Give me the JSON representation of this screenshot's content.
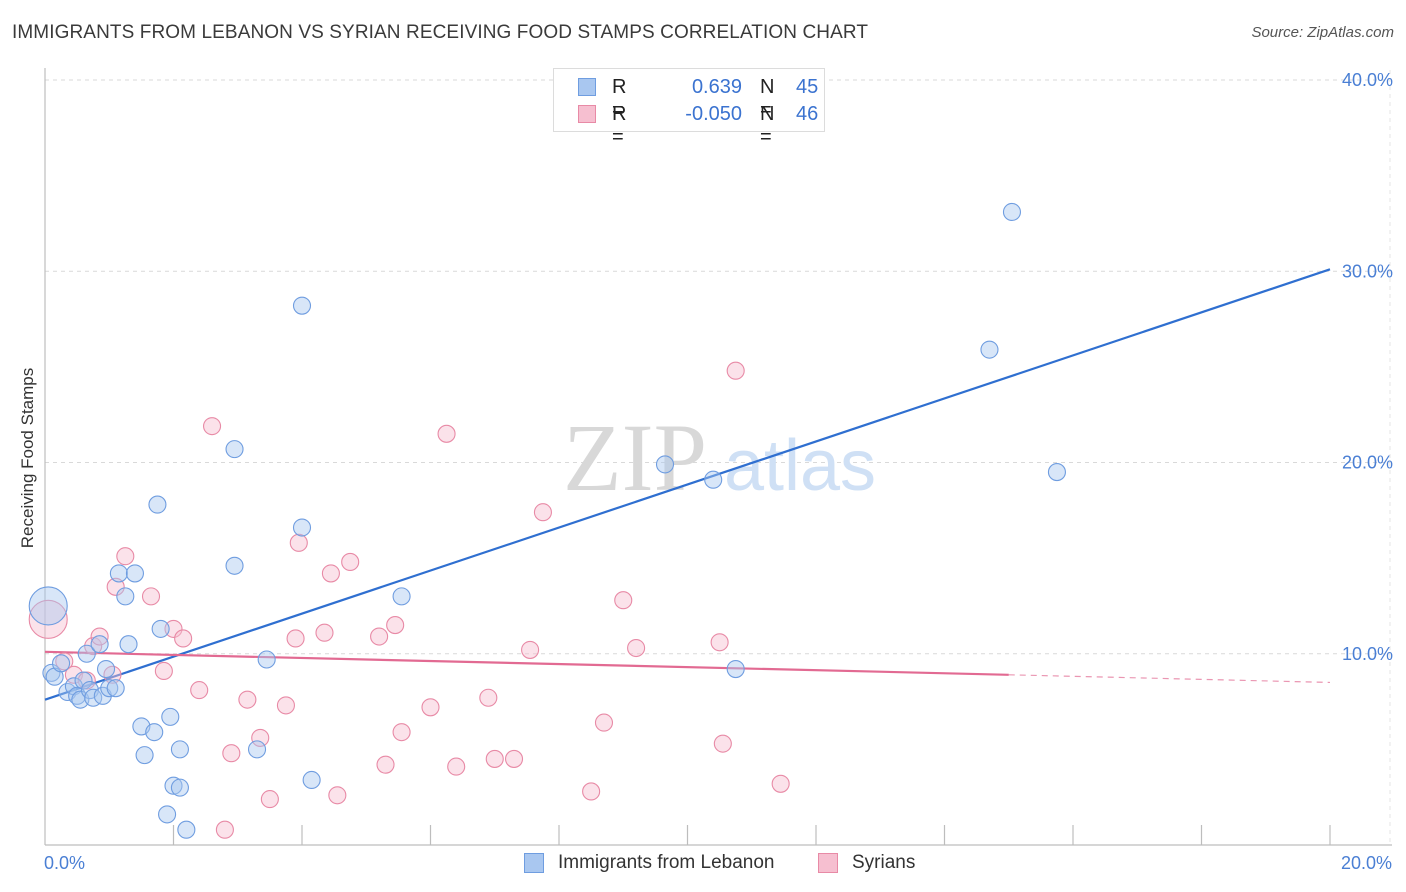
{
  "title": "IMMIGRANTS FROM LEBANON VS SYRIAN RECEIVING FOOD STAMPS CORRELATION CHART",
  "source": "Source: ZipAtlas.com",
  "watermark": {
    "zip": "ZIP",
    "atlas": "atlas"
  },
  "legend": {
    "rows": [
      {
        "r_label": "R =",
        "r_value": "0.639",
        "n_label": "N =",
        "n_value": "45",
        "color": "#a9c7f0",
        "border": "#6f9de0"
      },
      {
        "r_label": "R =",
        "r_value": "-0.050",
        "n_label": "N =",
        "n_value": "46",
        "color": "#f6bfd0",
        "border": "#e88aa6"
      }
    ]
  },
  "bottom_legend": [
    {
      "label": "Immigrants from Lebanon",
      "color": "#a9c7f0",
      "border": "#6f9de0"
    },
    {
      "label": "Syrians",
      "color": "#f6bfd0",
      "border": "#e88aa6"
    }
  ],
  "chart_data": {
    "type": "scatter",
    "ylabel": "Receiving Food Stamps",
    "xlabel": "",
    "xlim": [
      0,
      20
    ],
    "ylim": [
      0,
      40
    ],
    "x_tick_labels": [
      {
        "value": 0,
        "label": "0.0%"
      },
      {
        "value": 20,
        "label": "20.0%"
      }
    ],
    "y_tick_labels": [
      {
        "value": 10,
        "label": "10.0%"
      },
      {
        "value": 20,
        "label": "20.0%"
      },
      {
        "value": 30,
        "label": "30.0%"
      },
      {
        "value": 40,
        "label": "40.0%"
      }
    ],
    "x_minor_ticks": [
      2,
      4,
      6,
      8,
      10,
      12,
      14,
      16,
      18
    ],
    "series": [
      {
        "name": "Immigrants from Lebanon",
        "color": "#6f9de0",
        "fill": "#a9c7f0",
        "trend": {
          "x": [
            0,
            20
          ],
          "y": [
            7.6,
            30.1
          ],
          "color": "#2f6fd0"
        },
        "points": [
          {
            "x": 0.05,
            "y": 12.5,
            "big": true
          },
          {
            "x": 0.1,
            "y": 9.0
          },
          {
            "x": 0.15,
            "y": 8.8
          },
          {
            "x": 0.25,
            "y": 9.5
          },
          {
            "x": 0.35,
            "y": 8.0
          },
          {
            "x": 0.45,
            "y": 8.3
          },
          {
            "x": 0.5,
            "y": 7.8
          },
          {
            "x": 0.55,
            "y": 7.6
          },
          {
            "x": 0.6,
            "y": 8.6
          },
          {
            "x": 0.65,
            "y": 10.0
          },
          {
            "x": 0.7,
            "y": 8.1
          },
          {
            "x": 0.75,
            "y": 7.7
          },
          {
            "x": 0.85,
            "y": 10.5
          },
          {
            "x": 0.9,
            "y": 7.8
          },
          {
            "x": 0.95,
            "y": 9.2
          },
          {
            "x": 1.0,
            "y": 8.2
          },
          {
            "x": 1.1,
            "y": 8.2
          },
          {
            "x": 1.15,
            "y": 14.2
          },
          {
            "x": 1.25,
            "y": 13.0
          },
          {
            "x": 1.3,
            "y": 10.5
          },
          {
            "x": 1.4,
            "y": 14.2
          },
          {
            "x": 1.5,
            "y": 6.2
          },
          {
            "x": 1.55,
            "y": 4.7
          },
          {
            "x": 1.7,
            "y": 5.9
          },
          {
            "x": 1.75,
            "y": 17.8
          },
          {
            "x": 1.8,
            "y": 11.3
          },
          {
            "x": 1.9,
            "y": 1.6
          },
          {
            "x": 1.95,
            "y": 6.7
          },
          {
            "x": 2.0,
            "y": 3.1
          },
          {
            "x": 2.1,
            "y": 3.0
          },
          {
            "x": 2.1,
            "y": 5.0
          },
          {
            "x": 2.2,
            "y": 0.8
          },
          {
            "x": 2.95,
            "y": 20.7
          },
          {
            "x": 2.95,
            "y": 14.6
          },
          {
            "x": 3.3,
            "y": 5.0
          },
          {
            "x": 3.45,
            "y": 9.7
          },
          {
            "x": 4.0,
            "y": 28.2
          },
          {
            "x": 4.0,
            "y": 16.6
          },
          {
            "x": 4.15,
            "y": 3.4
          },
          {
            "x": 5.55,
            "y": 13.0
          },
          {
            "x": 9.65,
            "y": 19.9
          },
          {
            "x": 10.4,
            "y": 19.1
          },
          {
            "x": 10.75,
            "y": 9.2
          },
          {
            "x": 14.7,
            "y": 25.9
          },
          {
            "x": 15.05,
            "y": 33.1
          },
          {
            "x": 15.75,
            "y": 19.5
          }
        ]
      },
      {
        "name": "Syrians",
        "color": "#e88aa6",
        "fill": "#f6bfd0",
        "trend": {
          "x": [
            0,
            15
          ],
          "y": [
            10.1,
            8.9
          ],
          "color": "#e26a92"
        },
        "trend_dashed": {
          "x": [
            15,
            20
          ],
          "y": [
            8.9,
            8.5
          ]
        },
        "points": [
          {
            "x": 0.05,
            "y": 11.8,
            "big": true
          },
          {
            "x": 0.3,
            "y": 9.6
          },
          {
            "x": 0.45,
            "y": 8.9
          },
          {
            "x": 0.65,
            "y": 8.6
          },
          {
            "x": 0.75,
            "y": 10.4
          },
          {
            "x": 0.85,
            "y": 10.9
          },
          {
            "x": 1.05,
            "y": 8.9
          },
          {
            "x": 1.1,
            "y": 13.5
          },
          {
            "x": 1.25,
            "y": 15.1
          },
          {
            "x": 1.65,
            "y": 13.0
          },
          {
            "x": 1.85,
            "y": 9.1
          },
          {
            "x": 2.0,
            "y": 11.3
          },
          {
            "x": 2.15,
            "y": 10.8
          },
          {
            "x": 2.4,
            "y": 8.1
          },
          {
            "x": 2.6,
            "y": 21.9
          },
          {
            "x": 2.8,
            "y": 0.8
          },
          {
            "x": 2.9,
            "y": 4.8
          },
          {
            "x": 3.15,
            "y": 7.6
          },
          {
            "x": 3.35,
            "y": 5.6
          },
          {
            "x": 3.5,
            "y": 2.4
          },
          {
            "x": 3.75,
            "y": 7.3
          },
          {
            "x": 3.9,
            "y": 10.8
          },
          {
            "x": 3.95,
            "y": 15.8
          },
          {
            "x": 4.35,
            "y": 11.1
          },
          {
            "x": 4.45,
            "y": 14.2
          },
          {
            "x": 4.55,
            "y": 2.6
          },
          {
            "x": 4.75,
            "y": 14.8
          },
          {
            "x": 5.2,
            "y": 10.9
          },
          {
            "x": 5.3,
            "y": 4.2
          },
          {
            "x": 5.45,
            "y": 11.5
          },
          {
            "x": 5.55,
            "y": 5.9
          },
          {
            "x": 6.0,
            "y": 7.2
          },
          {
            "x": 6.25,
            "y": 21.5
          },
          {
            "x": 6.4,
            "y": 4.1
          },
          {
            "x": 6.9,
            "y": 7.7
          },
          {
            "x": 7.0,
            "y": 4.5
          },
          {
            "x": 7.3,
            "y": 4.5
          },
          {
            "x": 7.55,
            "y": 10.2
          },
          {
            "x": 7.75,
            "y": 17.4
          },
          {
            "x": 8.5,
            "y": 2.8
          },
          {
            "x": 8.7,
            "y": 6.4
          },
          {
            "x": 9.0,
            "y": 12.8
          },
          {
            "x": 9.2,
            "y": 10.3
          },
          {
            "x": 10.5,
            "y": 10.6
          },
          {
            "x": 10.55,
            "y": 5.3
          },
          {
            "x": 10.75,
            "y": 24.8
          },
          {
            "x": 11.45,
            "y": 3.2
          }
        ]
      }
    ]
  }
}
